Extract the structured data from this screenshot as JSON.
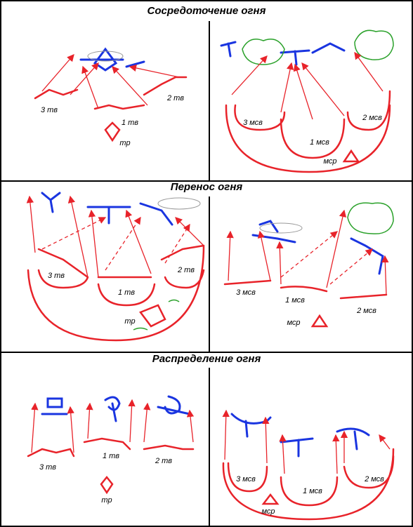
{
  "sections": [
    {
      "title": "Сосредоточение огня",
      "left": {
        "labels": [
          "3 тв",
          "1 тв",
          "2 тв",
          "тр"
        ]
      },
      "right": {
        "labels": [
          "3 мсв",
          "1 мсв",
          "2 мсв",
          "мср"
        ]
      }
    },
    {
      "title": "Перенос огня",
      "left": {
        "labels": [
          "3 тв",
          "1 тв",
          "2 тв",
          "тр"
        ]
      },
      "right": {
        "labels": [
          "3 мсв",
          "1 мсв",
          "2 мсв",
          "мср"
        ]
      }
    },
    {
      "title": "Распределение огня",
      "left": {
        "labels": [
          "3 тв",
          "1 тв",
          "2 тв",
          "тр"
        ]
      },
      "right": {
        "labels": [
          "3 мсв",
          "1 мсв",
          "2 мсв",
          "мср"
        ]
      }
    }
  ]
}
